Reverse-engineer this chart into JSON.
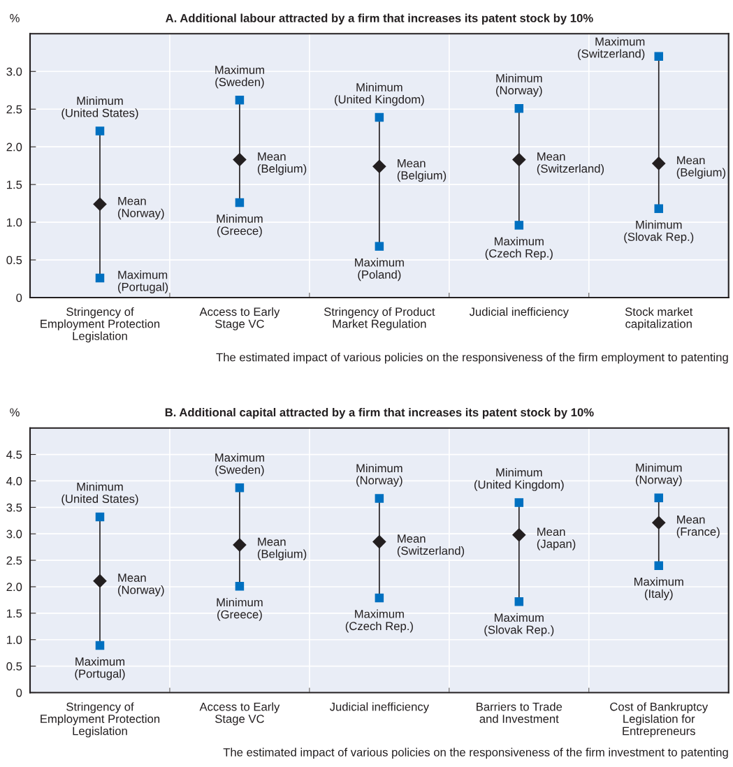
{
  "chart_data": [
    {
      "type": "scatter",
      "title": "A. Additional labour attracted by a firm that increases its patent stock by 10%",
      "ylabel": "%",
      "categories": [
        "Stringency of\nEmployment Protection\nLegislation",
        "Access to Early\nStage VC",
        "Stringency of Product\nMarket Regulation",
        "Judicial inefficiency",
        "Stock market\ncapitalization"
      ],
      "series": [
        {
          "color": "#0070c0",
          "marker": "square",
          "values": [
            2.21,
            2.62,
            2.39,
            2.51,
            3.2
          ]
        },
        {
          "color": "#0070c0",
          "marker": "square",
          "values": [
            0.26,
            1.26,
            0.68,
            0.96,
            1.18
          ]
        },
        {
          "color": "#231f20",
          "marker": "diamond",
          "values": [
            1.24,
            1.83,
            1.74,
            1.83,
            1.78
          ]
        }
      ],
      "ylim": [
        0,
        3.5
      ],
      "yticks": [
        0,
        0.5,
        {
          "value": 1,
          "label": "1.0"
        },
        1.5,
        {
          "value": 2,
          "label": "2.0"
        },
        2.5,
        {
          "value": 3,
          "label": "3.0"
        }
      ],
      "grid": true,
      "annotations": [
        {
          "text": "Minimum\n(United States)",
          "x": "Stringency of\nEmployment Protection\nLegislation",
          "y": 2.21
        },
        {
          "text": "Mean\n(Norway)",
          "x": "Stringency of\nEmployment Protection\nLegislation",
          "y": 1.24
        },
        {
          "text": "Maximum\n(Portugal)",
          "x": "Stringency of\nEmployment Protection\nLegislation",
          "y": 0.26
        },
        {
          "text": "Maximum\n(Sweden)",
          "x": "Access to Early\nStage VC",
          "y": 2.62
        },
        {
          "text": "Mean\n(Belgium)",
          "x": "Access to Early\nStage VC",
          "y": 1.83
        },
        {
          "text": "Minimum\n(Greece)",
          "x": "Access to Early\nStage VC",
          "y": 1.26
        },
        {
          "text": "Minimum\n(United Kingdom)",
          "x": "Stringency of Product\nMarket Regulation",
          "y": 2.39
        },
        {
          "text": "Mean\n(Belgium)",
          "x": "Stringency of Product\nMarket Regulation",
          "y": 1.74
        },
        {
          "text": "Maximum\n(Poland)",
          "x": "Stringency of Product\nMarket Regulation",
          "y": 0.68
        },
        {
          "text": "Minimum\n(Norway)",
          "x": "Judicial inefficiency",
          "y": 2.51
        },
        {
          "text": "Mean\n(Switzerland)",
          "x": "Judicial inefficiency",
          "y": 1.83
        },
        {
          "text": "Maximum\n(Czech Rep.)",
          "x": "Judicial inefficiency",
          "y": 0.96
        },
        {
          "text": "Maximum\n(Switzerland)",
          "x": "Stock market\ncapitalization",
          "y": 3.2
        },
        {
          "text": "Mean\n(Belgium)",
          "x": "Stock market\ncapitalization",
          "y": 1.78
        },
        {
          "text": "Minimum\n(Slovak Rep.)",
          "x": "Stock market\ncapitalization",
          "y": 1.18
        },
        "The estimated impact of various policies on the responsiveness of the firm employment to patenting"
      ]
    },
    {
      "type": "scatter",
      "title": "B. Additional capital attracted by a firm that increases its patent stock by 10%",
      "ylabel": "%",
      "categories": [
        "Stringency of\nEmployment Protection\nLegislation",
        "Access to Early\nStage VC",
        "Judicial inefficiency",
        "Barriers to Trade\nand Investment",
        "Cost of Bankruptcy\nLegislation for\nEntrepreneurs"
      ],
      "series": [
        {
          "color": "#0070c0",
          "marker": "square",
          "values": [
            3.32,
            3.87,
            3.67,
            3.59,
            3.68
          ]
        },
        {
          "color": "#0070c0",
          "marker": "square",
          "values": [
            0.89,
            2.01,
            1.79,
            1.72,
            2.4
          ]
        },
        {
          "color": "#231f20",
          "marker": "diamond",
          "values": [
            2.11,
            2.79,
            2.85,
            2.98,
            3.21
          ]
        }
      ],
      "ylim": [
        0,
        5
      ],
      "yticks": [
        0,
        0.5,
        {
          "value": 1,
          "label": "1.0"
        },
        1.5,
        {
          "value": 2,
          "label": "2.0"
        },
        2.5,
        {
          "value": 3,
          "label": "3.0"
        },
        3.5,
        {
          "value": 4,
          "label": "4.0"
        },
        4.5
      ],
      "grid": true,
      "annotations": [
        {
          "text": "Minimum\n(United States)",
          "x": "Stringency of\nEmployment Protection\nLegislation",
          "y": 3.32
        },
        {
          "text": "Mean\n(Norway)",
          "x": "Stringency of\nEmployment Protection\nLegislation",
          "y": 2.11
        },
        {
          "text": "Maximum\n(Portugal)",
          "x": "Stringency of\nEmployment Protection\nLegislation",
          "y": 0.89
        },
        {
          "text": "Maximum\n(Sweden)",
          "x": "Access to Early\nStage VC",
          "y": 3.87
        },
        {
          "text": "Mean\n(Belgium)",
          "x": "Access to Early\nStage VC",
          "y": 2.79
        },
        {
          "text": "Minimum\n(Greece)",
          "x": "Access to Early\nStage VC",
          "y": 2.01
        },
        {
          "text": "Minimum\n(Norway)",
          "x": "Judicial inefficiency",
          "y": 3.67
        },
        {
          "text": "Mean\n(Switzerland)",
          "x": "Judicial inefficiency",
          "y": 2.85
        },
        {
          "text": "Maximum\n(Czech Rep.)",
          "x": "Judicial inefficiency",
          "y": 1.79
        },
        {
          "text": "Minimum\n(United Kingdom)",
          "x": "Barriers to Trade\nand Investment",
          "y": 3.59
        },
        {
          "text": "Mean\n(Japan)",
          "x": "Barriers to Trade\nand Investment",
          "y": 2.98
        },
        {
          "text": "Maximum\n(Slovak Rep.)",
          "x": "Barriers to Trade\nand Investment",
          "y": 1.72
        },
        {
          "text": "Minimum\n(Norway)",
          "x": "Cost of Bankruptcy\nLegislation for\nEntrepreneurs",
          "y": 3.68
        },
        {
          "text": "Mean\n(France)",
          "x": "Cost of Bankruptcy\nLegislation for\nEntrepreneurs",
          "y": 3.21
        },
        {
          "text": "Maximum\n(Italy)",
          "x": "Cost of Bankruptcy\nLegislation for\nEntrepreneurs",
          "y": 2.4
        },
        "The estimated impact of various policies on the responsiveness of the firm investment to patenting"
      ]
    }
  ]
}
